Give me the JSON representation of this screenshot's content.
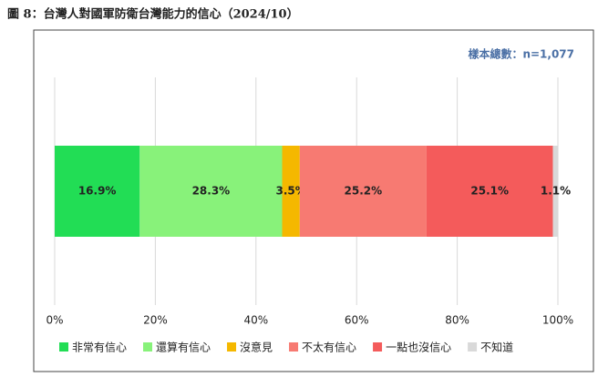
{
  "chart_data": {
    "type": "stacked-bar",
    "title": "圖 8：台灣人對國軍防衛台灣能力的信心（2024/10）",
    "annotation": "樣本總數：n=1,077",
    "series": [
      {
        "name": "非常有信心",
        "color": "#22dd55",
        "values": [
          16.9
        ],
        "value_labels": [
          "16.9%"
        ]
      },
      {
        "name": "還算有信心",
        "color": "#88f27a",
        "values": [
          28.3
        ],
        "value_labels": [
          "28.3%"
        ]
      },
      {
        "name": "沒意見",
        "color": "#f5b800",
        "values": [
          3.5
        ],
        "value_labels": [
          "3.5%"
        ]
      },
      {
        "name": "不太有信心",
        "color": "#f77a72",
        "values": [
          25.2
        ],
        "value_labels": [
          "25.2%"
        ]
      },
      {
        "name": "一點也沒信心",
        "color": "#f45b5b",
        "values": [
          25.1
        ],
        "value_labels": [
          "25.1%"
        ]
      },
      {
        "name": "不知道",
        "color": "#d9d9d9",
        "values": [
          1.1
        ],
        "value_labels": [
          "1.1%"
        ]
      }
    ],
    "xlim": [
      0,
      100
    ],
    "xticks": [
      {
        "value": 0,
        "label": "0%"
      },
      {
        "value": 20,
        "label": "20%"
      },
      {
        "value": 40,
        "label": "40%"
      },
      {
        "value": 60,
        "label": "60%"
      },
      {
        "value": 80,
        "label": "80%"
      },
      {
        "value": 100,
        "label": "100%"
      }
    ],
    "grid": true
  }
}
